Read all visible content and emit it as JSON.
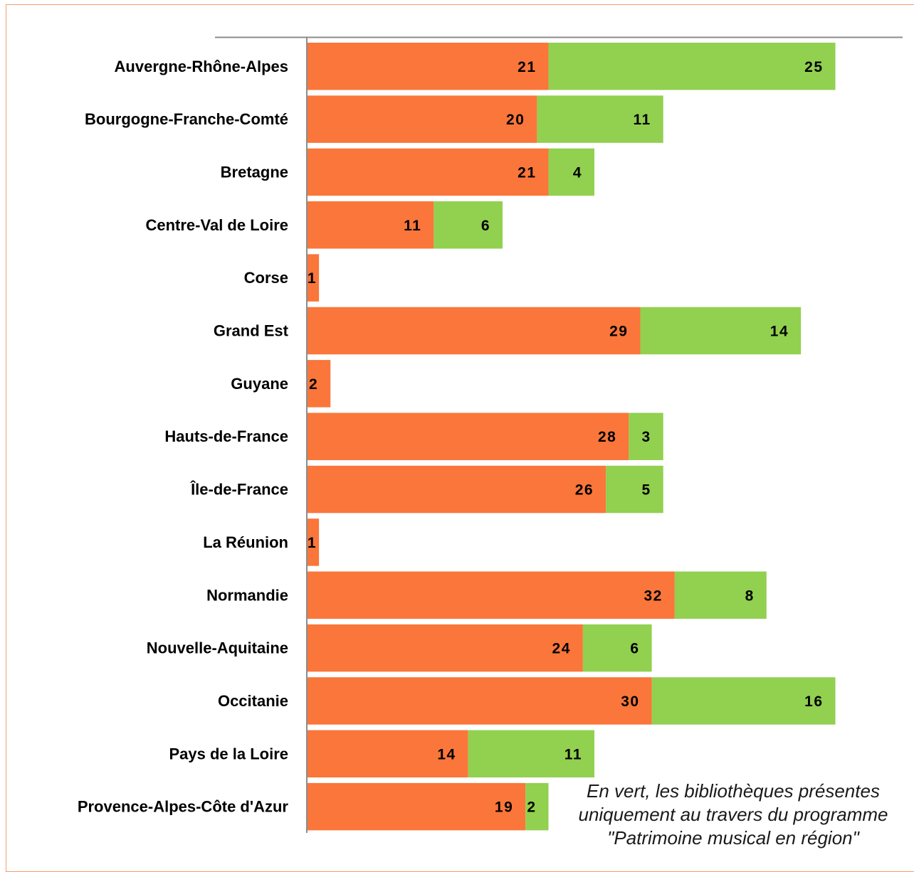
{
  "chart_data": {
    "type": "bar",
    "orientation": "horizontal",
    "stacked": true,
    "categories": [
      "Auvergne-Rhône-Alpes",
      "Bourgogne-Franche-Comté",
      "Bretagne",
      "Centre-Val de Loire",
      "Corse",
      "Grand Est",
      "Guyane",
      "Hauts-de-France",
      "Île-de-France",
      "La Réunion",
      "Normandie",
      "Nouvelle-Aquitaine",
      "Occitanie",
      "Pays de la Loire",
      "Provence-Alpes-Côte d'Azur"
    ],
    "series": [
      {
        "color": "#fa763a",
        "values": [
          21,
          20,
          21,
          11,
          1,
          29,
          2,
          28,
          26,
          1,
          32,
          24,
          30,
          14,
          19
        ]
      },
      {
        "color": "#92d050",
        "values": [
          25,
          11,
          4,
          6,
          null,
          14,
          null,
          3,
          5,
          null,
          8,
          6,
          16,
          11,
          2
        ]
      }
    ],
    "xlim": [
      0,
      52
    ],
    "grid": false,
    "legend": "none",
    "annotation": {
      "line1": "En vert, les bibliothèques présentes",
      "line2": "uniquement au travers du programme",
      "line3_prefix": "\"",
      "line3_italic": "Patrimoine musical en région",
      "line3_suffix": "\""
    }
  }
}
